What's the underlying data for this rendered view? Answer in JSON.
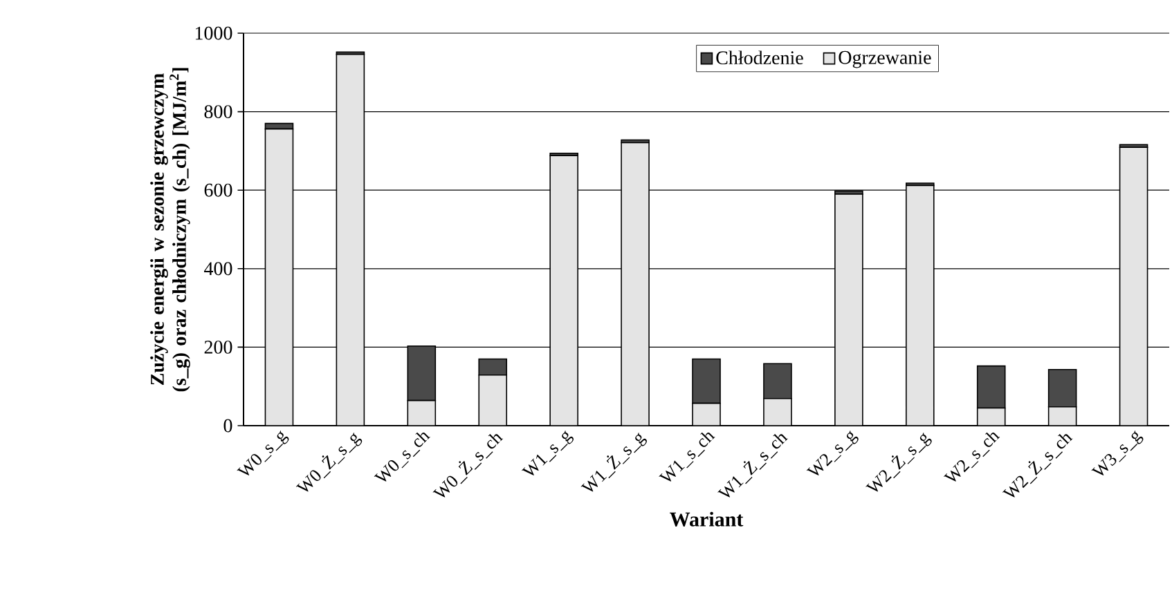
{
  "chart_data": {
    "type": "bar",
    "stacked": true,
    "xlabel": "Wariant",
    "ylabel": "Zużycie energii w sezonie grzewczym (s_g) oraz chłodniczym (s_ch) [MJ/m$^{2}$]",
    "categories": [
      "W0_s_g",
      "W0_Ż_s_g",
      "W0_s_ch",
      "W0_Ż_s_ch",
      "W1_s_g",
      "W1_Ż_s_g",
      "W1_s_ch",
      "W1_Ż_s_ch",
      "W2_s_g",
      "W2_Ż_s_g",
      "W2_s_ch",
      "W2_Ż_s_ch",
      "W3_s_g"
    ],
    "series": [
      {
        "name": "Ogrzewanie",
        "color": "#e4e4e4",
        "values": [
          756,
          946,
          64,
          129,
          688,
          721,
          57,
          69,
          590,
          612,
          45,
          48,
          709
        ]
      },
      {
        "name": "Chłodzenie",
        "color": "#4a4a4a",
        "values": [
          14,
          6,
          139,
          41,
          6,
          7,
          113,
          89,
          8,
          6,
          107,
          95,
          7
        ]
      }
    ],
    "ylim": [
      0,
      1000
    ],
    "yticks": [
      0,
      200,
      400,
      600,
      800,
      1000
    ],
    "grid": "y",
    "legend": "top"
  }
}
